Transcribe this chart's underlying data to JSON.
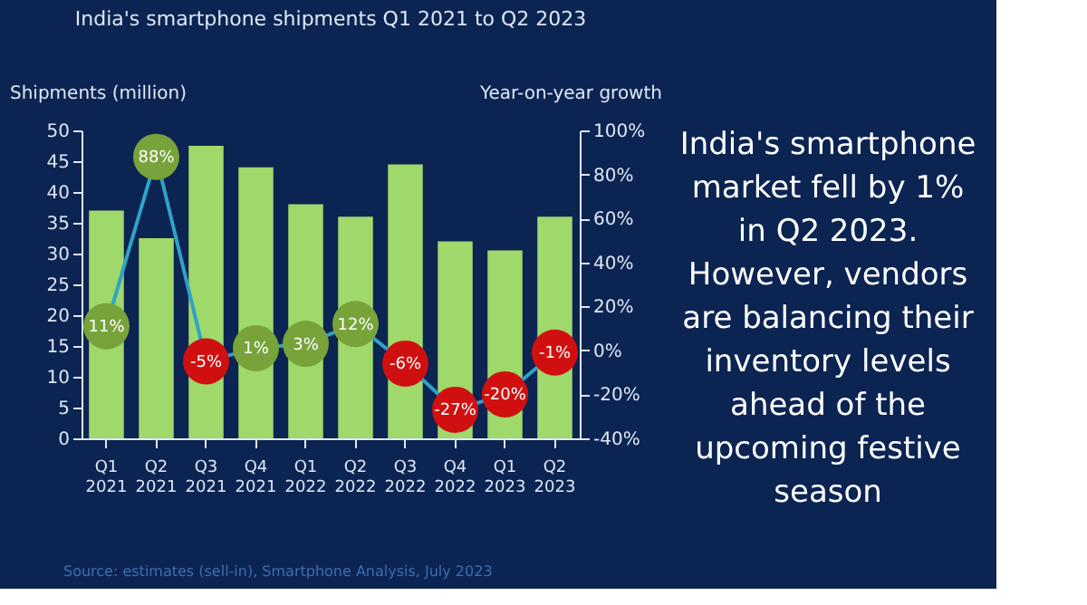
{
  "chart_data": {
    "type": "bar",
    "title": "India's smartphone shipments Q1 2021 to Q2 2023",
    "xlabel": null,
    "ylabel": "Shipments (million)",
    "y2label": "Year-on-year growth",
    "categories": [
      "Q1 2021",
      "Q2 2021",
      "Q3 2021",
      "Q4 2021",
      "Q1 2022",
      "Q2 2022",
      "Q3 2022",
      "Q4 2022",
      "Q1 2023",
      "Q2 2023"
    ],
    "series": [
      {
        "color": "#9fd86b",
        "values": [
          37,
          32.5,
          47.5,
          44,
          38,
          36,
          44.5,
          32,
          30.5,
          36
        ]
      },
      {
        "type": "line",
        "axis": "y2",
        "color": "#2fa3c8",
        "marker": "circle",
        "value_labels": [
          "11%",
          "88%",
          "-5%",
          "1%",
          "3%",
          "12%",
          "-6%",
          "-27%",
          "-20%",
          "-1%"
        ],
        "values": [
          11,
          88,
          -5,
          1,
          3,
          12,
          -6,
          -27,
          -20,
          -1
        ],
        "colors": [
          "#77a33a",
          "#77a33a",
          "#d01010",
          "#77a33a",
          "#77a33a",
          "#77a33a",
          "#d01010",
          "#d01010",
          "#d01010",
          "#d01010"
        ]
      }
    ],
    "ylim": [
      0,
      50
    ],
    "yticks": [
      0,
      5,
      10,
      15,
      20,
      25,
      30,
      35,
      40,
      45,
      50
    ],
    "y2lim": [
      -40,
      100
    ],
    "y2ticks": [
      {
        "value": -40,
        "label": "-40%"
      },
      {
        "value": -20,
        "label": "-20%"
      },
      {
        "value": 0,
        "label": "0%"
      },
      {
        "value": 20,
        "label": "20%"
      },
      {
        "value": 40,
        "label": "40%"
      },
      {
        "value": 60,
        "label": "60%"
      },
      {
        "value": 80,
        "label": "80%"
      },
      {
        "value": 100,
        "label": "100%"
      }
    ],
    "grid": false,
    "annotations": [
      "India's smartphone market fell by 1% in Q2 2023. However, vendors are balancing their inventory levels ahead of the upcoming festive season",
      "Source: estimates (sell-in), Smartphone Analysis, July 2023"
    ]
  }
}
